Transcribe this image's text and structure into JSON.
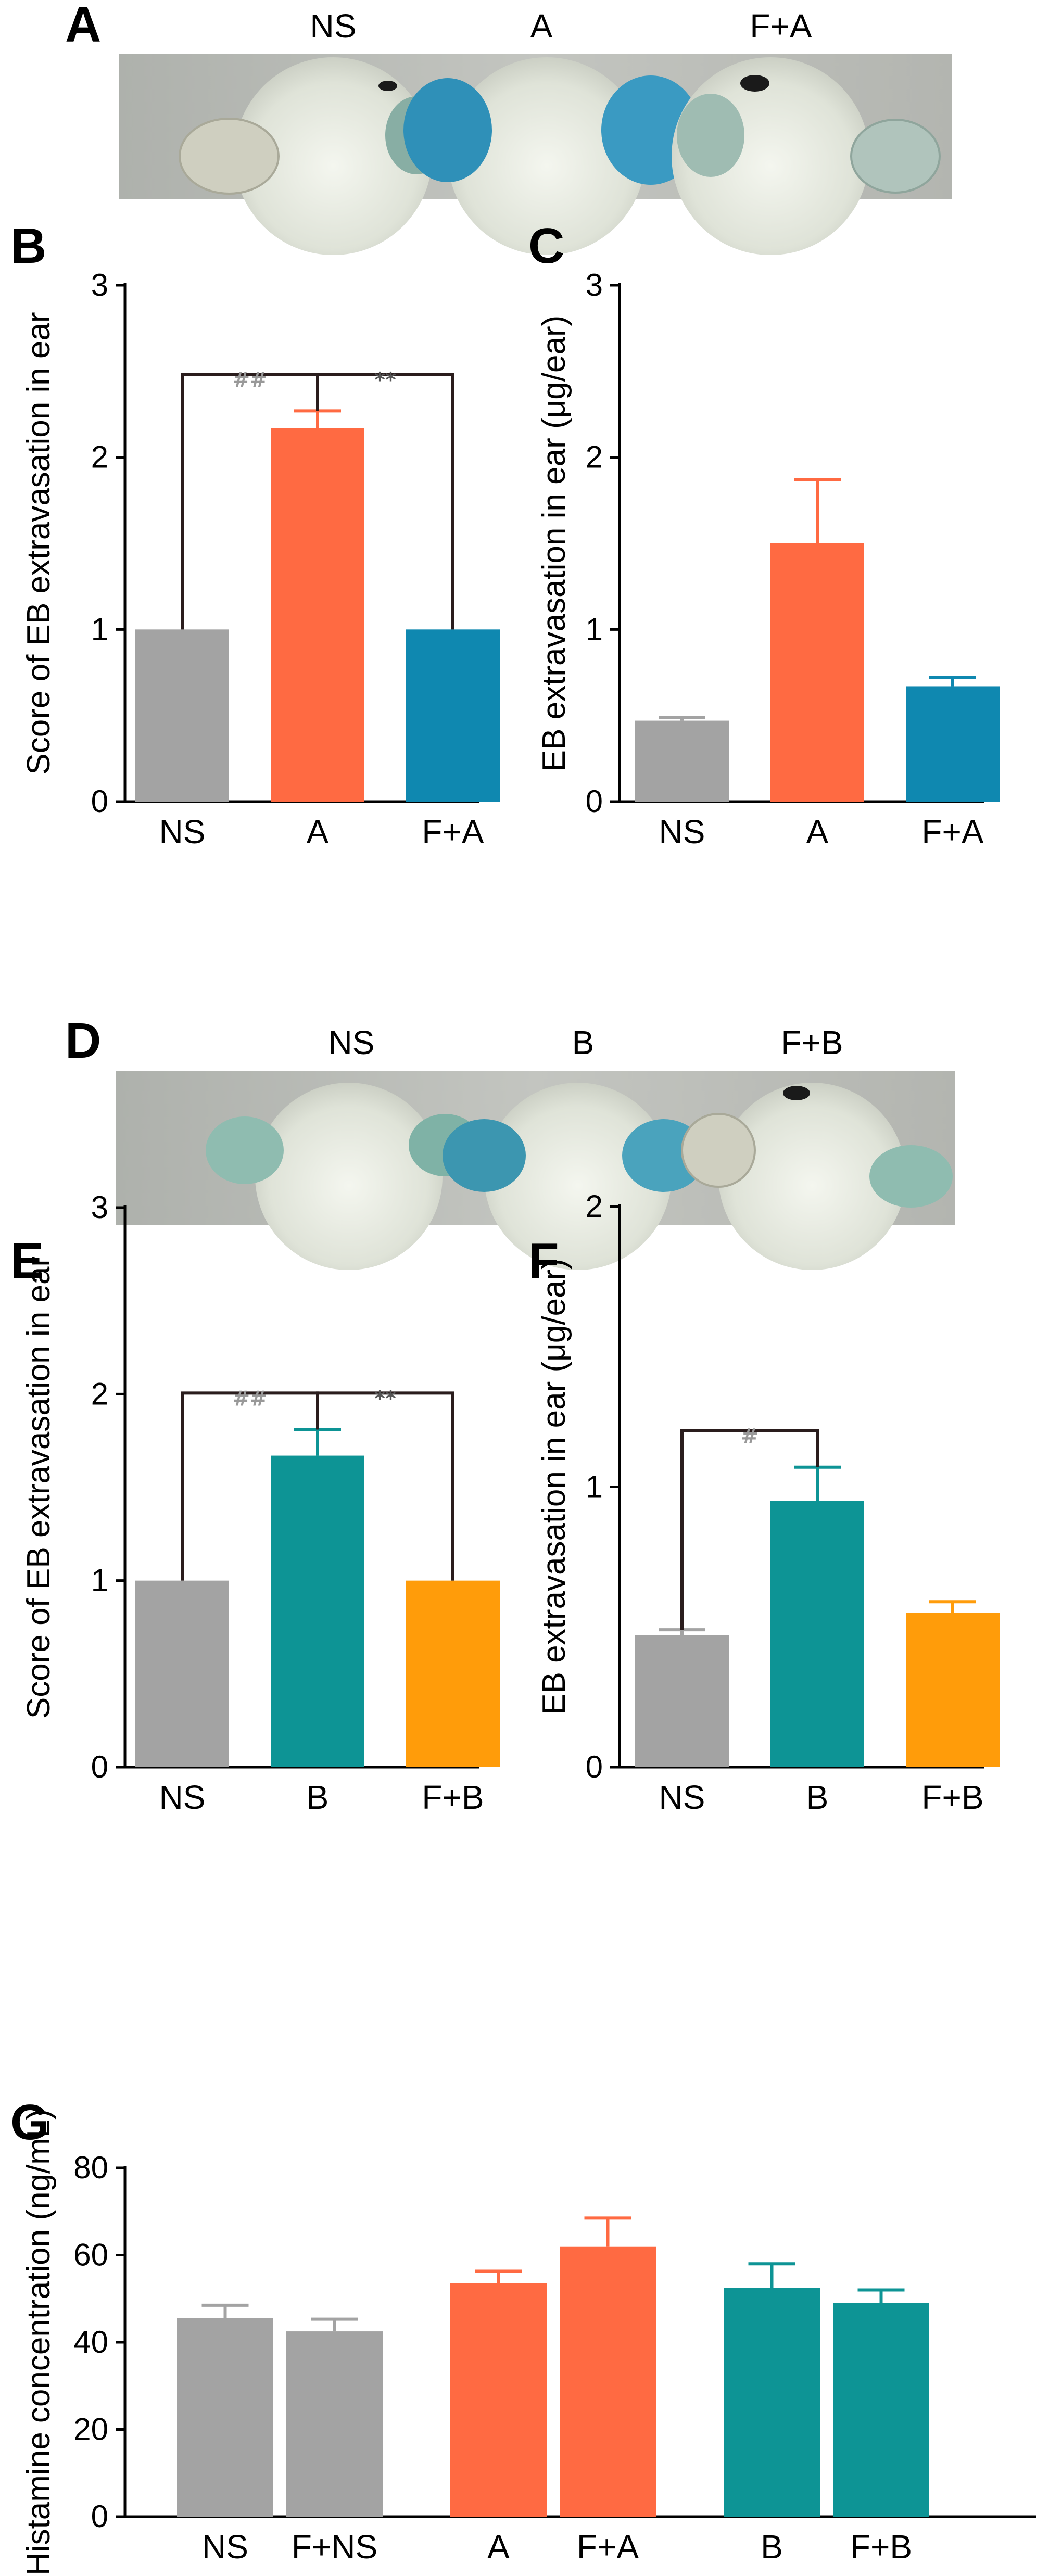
{
  "figure": {
    "panel_letters": [
      "A",
      "B",
      "C",
      "D",
      "E",
      "F",
      "G"
    ]
  },
  "photos": [
    {
      "panel": "A",
      "labels": [
        "NS",
        "A",
        "F+A"
      ]
    },
    {
      "panel": "D",
      "labels": [
        "NS",
        "B",
        "F+B"
      ]
    }
  ],
  "chart_data": [
    {
      "panel": "B",
      "type": "bar",
      "categories": [
        "NS",
        "A",
        "F+A"
      ],
      "values": [
        1.0,
        2.17,
        1.0
      ],
      "errors": [
        0,
        0.1,
        0
      ],
      "colors": [
        "#a3a3a3",
        "#ff6a42",
        "#0f88b0"
      ],
      "ylabel": "Score of EB extravasation in ear",
      "ylim": [
        0,
        3
      ],
      "yticks": [
        "0",
        "1",
        "2",
        "3"
      ],
      "significance": [
        {
          "from": 0,
          "to": 1,
          "label": "##",
          "color": "#999999"
        },
        {
          "from": 1,
          "to": 2,
          "label": "**",
          "color": "#555555"
        }
      ]
    },
    {
      "panel": "C",
      "type": "bar",
      "categories": [
        "NS",
        "A",
        "F+A"
      ],
      "values": [
        0.47,
        1.5,
        0.67
      ],
      "errors": [
        0.02,
        0.37,
        0.05
      ],
      "colors": [
        "#a3a3a3",
        "#ff6a42",
        "#0f88b0"
      ],
      "ylabel": "EB extravasation in ear (μg/ear)",
      "ylim": [
        0,
        3
      ],
      "yticks": [
        "0",
        "1",
        "2",
        "3"
      ],
      "significance": []
    },
    {
      "panel": "E",
      "type": "bar",
      "categories": [
        "NS",
        "B",
        "F+B"
      ],
      "values": [
        1.0,
        1.67,
        1.0
      ],
      "errors": [
        0,
        0.14,
        0
      ],
      "colors": [
        "#a3a3a3",
        "#0d9495",
        "#ff9c0a"
      ],
      "ylabel": "Score of EB extravasation in ear",
      "ylim": [
        0,
        3
      ],
      "yticks": [
        "0",
        "1",
        "2",
        "3"
      ],
      "significance": [
        {
          "from": 0,
          "to": 1,
          "label": "##",
          "color": "#999999"
        },
        {
          "from": 1,
          "to": 2,
          "label": "**",
          "color": "#555555"
        }
      ]
    },
    {
      "panel": "F",
      "type": "bar",
      "categories": [
        "NS",
        "B",
        "F+B"
      ],
      "values": [
        0.47,
        0.95,
        0.55
      ],
      "errors": [
        0.02,
        0.12,
        0.04
      ],
      "colors": [
        "#a3a3a3",
        "#0d9495",
        "#ff9c0a"
      ],
      "ylabel": "EB extravasation in ear (μg/ear)",
      "ylim": [
        0,
        2
      ],
      "yticks": [
        "0",
        "1",
        "2"
      ],
      "significance": [
        {
          "from": 0,
          "to": 1,
          "label": "#",
          "color": "#999999"
        }
      ]
    },
    {
      "panel": "G",
      "type": "bar",
      "categories": [
        "NS",
        "F+NS",
        "A",
        "F+A",
        "B",
        "F+B"
      ],
      "values": [
        45.5,
        42.5,
        53.5,
        62,
        52.5,
        49
      ],
      "errors": [
        3,
        2.8,
        2.8,
        6.5,
        5.5,
        3
      ],
      "colors": [
        "#a3a3a3",
        "#a3a3a3",
        "#ff6a42",
        "#ff6a42",
        "#0d9495",
        "#0d9495"
      ],
      "ylabel": "Histamine concentration (ng/mL)",
      "ylim": [
        0,
        80
      ],
      "yticks": [
        "0",
        "20",
        "40",
        "60",
        "80"
      ],
      "significance": []
    }
  ]
}
